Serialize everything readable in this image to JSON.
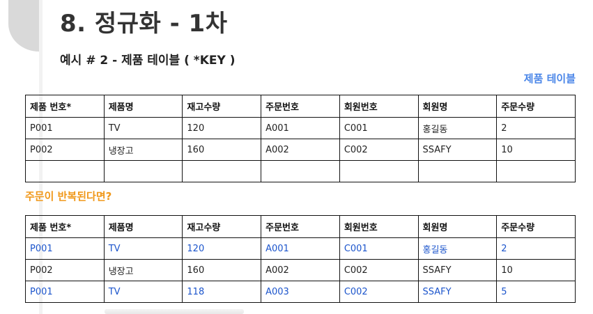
{
  "slide": {
    "title": "8. 정규화 - 1차",
    "subtitle": "예시 # 2 - 제품 테이블 ( *KEY )",
    "table_caption": "제품 테이블",
    "note": "주문이 반복된다면?"
  },
  "colors": {
    "highlight_text": "#1c55cc",
    "caption_blue": "#4a86e8",
    "note_orange": "#f0981a"
  },
  "table1": {
    "headers": [
      "제품 번호*",
      "제품명",
      "재고수량",
      "주문번호",
      "회원번호",
      "회원명",
      "주문수량"
    ],
    "rows": [
      [
        "P001",
        "TV",
        "120",
        "A001",
        "C001",
        "홍길동",
        "2"
      ],
      [
        "P002",
        "냉장고",
        "160",
        "A002",
        "C002",
        "SSAFY",
        "10"
      ],
      [
        "",
        "",
        "",
        "",
        "",
        "",
        ""
      ]
    ]
  },
  "table2": {
    "headers": [
      "제품 번호*",
      "제품명",
      "재고수량",
      "주문번호",
      "회원번호",
      "회원명",
      "주문수량"
    ],
    "rows": [
      [
        "P001",
        "TV",
        "120",
        "A001",
        "C001",
        "홍길동",
        "2"
      ],
      [
        "P002",
        "냉장고",
        "160",
        "A002",
        "C002",
        "SSAFY",
        "10"
      ],
      [
        "P001",
        "TV",
        "118",
        "A003",
        "C002",
        "SSAFY",
        "5"
      ]
    ],
    "highlighted_rows": [
      0,
      2
    ]
  }
}
